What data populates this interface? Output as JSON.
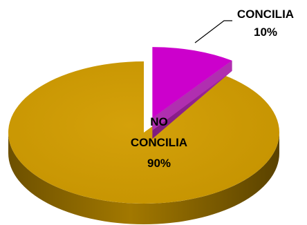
{
  "chart_data": {
    "type": "pie",
    "style": "3d-exploded",
    "slices": [
      {
        "label": "CONCILIA",
        "value": 10,
        "value_label": "10%",
        "color": "#cc00cc",
        "side_color": "#8f1f8f",
        "exploded": true
      },
      {
        "label": "NO CONCILIA",
        "value": 90,
        "value_label": "90%",
        "color": "#cc9900",
        "side_color": "#7a5a00",
        "exploded": false
      }
    ],
    "labels": {
      "concilia": {
        "line1": "CONCILIA",
        "line2": "10%"
      },
      "no_concilia": {
        "line1": "NO",
        "line2": "CONCILIA",
        "line3": "90%"
      }
    }
  }
}
